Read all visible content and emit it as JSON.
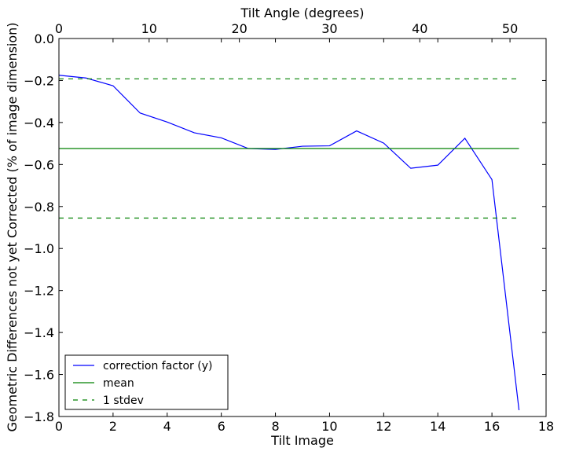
{
  "chart_data": {
    "type": "line",
    "xlabel": "Tilt Image",
    "ylabel": "Geometric Differences not yet Corrected (% of image dimension)",
    "x2label": "Tilt Angle (degrees)",
    "xlim": [
      0,
      18
    ],
    "ylim": [
      -1.8,
      0.0
    ],
    "x2lim": [
      0,
      54
    ],
    "xticks": [
      0,
      2,
      4,
      6,
      8,
      10,
      12,
      14,
      16,
      18
    ],
    "yticks": [
      0.0,
      -0.2,
      -0.4,
      -0.6,
      -0.8,
      -1.0,
      -1.2,
      -1.4,
      -1.6,
      -1.8
    ],
    "x2ticks": [
      0,
      10,
      20,
      30,
      40,
      50
    ],
    "xtick_labels": [
      "0",
      "2",
      "4",
      "6",
      "8",
      "10",
      "12",
      "14",
      "16",
      "18"
    ],
    "ytick_labels": [
      "0.0",
      "−0.2",
      "−0.4",
      "−0.6",
      "−0.8",
      "−1.0",
      "−1.2",
      "−1.4",
      "−1.6",
      "−1.8"
    ],
    "x2tick_labels": [
      "0",
      "10",
      "20",
      "30",
      "40",
      "50"
    ],
    "grid": false,
    "legend_position": "lower-left",
    "series": [
      {
        "name": "correction factor (y)",
        "color": "#0000ff",
        "style": "solid",
        "x": [
          0,
          1,
          2,
          3,
          4,
          5,
          6,
          7,
          8,
          9,
          10,
          11,
          12,
          13,
          14,
          15,
          16,
          17
        ],
        "y": [
          -0.175,
          -0.188,
          -0.225,
          -0.355,
          -0.398,
          -0.449,
          -0.473,
          -0.524,
          -0.528,
          -0.513,
          -0.511,
          -0.44,
          -0.498,
          -0.618,
          -0.603,
          -0.475,
          -0.672,
          -1.77
        ]
      },
      {
        "name": "mean",
        "color": "#008000",
        "style": "solid",
        "x": [
          0,
          17
        ],
        "y": [
          -0.524,
          -0.524
        ]
      },
      {
        "name": "1 stdev",
        "color": "#008000",
        "style": "dashed",
        "x": [
          0,
          17
        ],
        "y": [
          -0.192,
          -0.192
        ]
      },
      {
        "name": "",
        "color": "#008000",
        "style": "dashed",
        "x": [
          0,
          17
        ],
        "y": [
          -0.855,
          -0.855
        ]
      }
    ]
  }
}
